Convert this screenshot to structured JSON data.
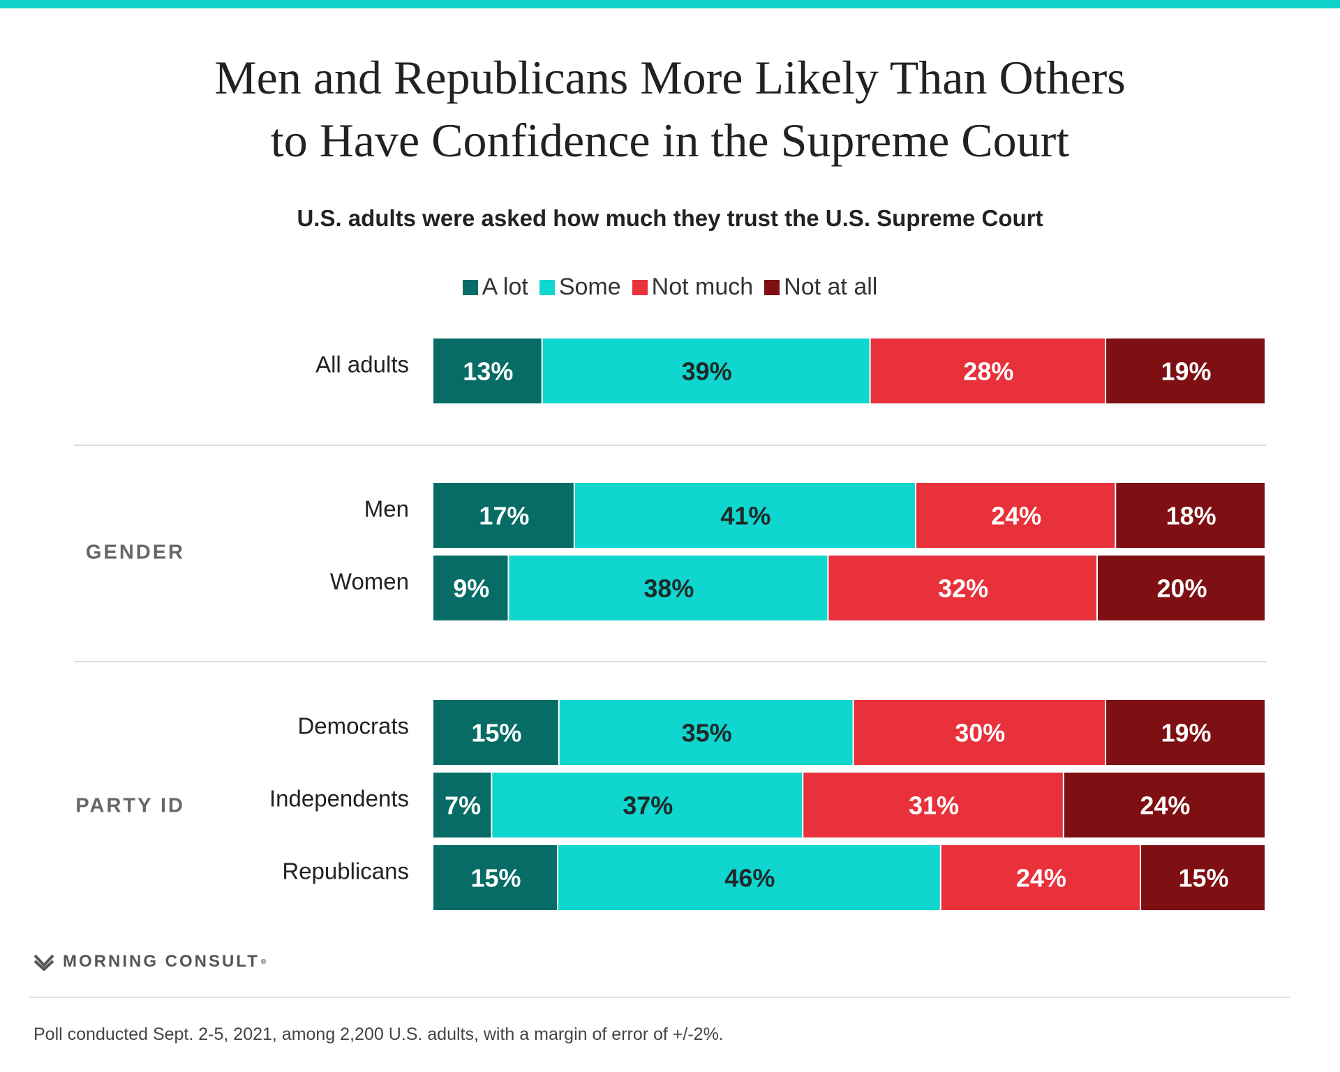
{
  "colors": {
    "accent_bar": "#0fd3c8",
    "a_lot": "#076c65",
    "some": "#0fd6ce",
    "not_much": "#e8313b",
    "not_at_all": "#7e0f12",
    "dark_label": "#1e2a2a",
    "light_label": "#ffffff"
  },
  "chart_data": {
    "type": "bar",
    "orientation": "horizontal",
    "stacked": true,
    "title_lines": [
      "Men and Republicans More Likely Than Others",
      "to Have Confidence in the Supreme Court"
    ],
    "subtitle": "U.S. adults were asked how much they trust the U.S. Supreme Court",
    "legend": {
      "position": "top-center",
      "entries": [
        {
          "label": "A lot",
          "color": "#076c65"
        },
        {
          "label": "Some",
          "color": "#0fd6ce"
        },
        {
          "label": "Not much",
          "color": "#e8313b"
        },
        {
          "label": "Not at all",
          "color": "#7e0f12"
        }
      ]
    },
    "xlim": [
      0,
      100
    ],
    "unit": "%",
    "groups": [
      {
        "label": "",
        "rows": [
          {
            "category": "All adults",
            "values": [
              13,
              39,
              28,
              19
            ]
          }
        ]
      },
      {
        "label": "GENDER",
        "rows": [
          {
            "category": "Men",
            "values": [
              17,
              41,
              24,
              18
            ]
          },
          {
            "category": "Women",
            "values": [
              9,
              38,
              32,
              20
            ]
          }
        ]
      },
      {
        "label": "PARTY ID",
        "rows": [
          {
            "category": "Democrats",
            "values": [
              15,
              35,
              30,
              19
            ]
          },
          {
            "category": "Independents",
            "values": [
              7,
              37,
              31,
              24
            ]
          },
          {
            "category": "Republicans",
            "values": [
              15,
              46,
              24,
              15
            ]
          }
        ]
      }
    ]
  },
  "footer": {
    "logo_text": "MORNING CONSULT",
    "logo_mark": "®",
    "note": "Poll conducted Sept. 2-5, 2021, among 2,200 U.S. adults, with a margin of error of +/-2%."
  }
}
